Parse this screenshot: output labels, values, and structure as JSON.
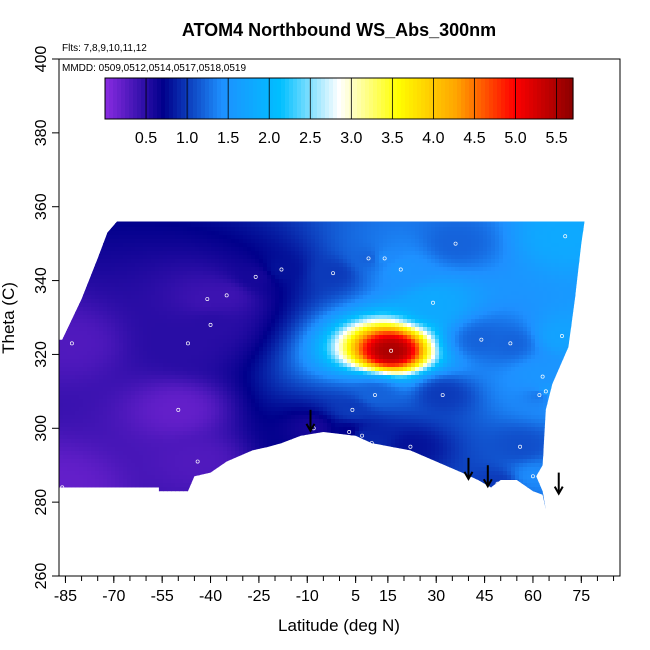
{
  "chart_data": {
    "type": "heatmap",
    "title": "ATOM4 Northbound WS_Abs_300nm",
    "annotations": [
      "Flts: 7,8,9,10,11,12",
      "MMDD: 0509,0512,0514,0517,0518,0519"
    ],
    "xlabel": "Latitude (deg N)",
    "ylabel": "Theta (C)",
    "xlim": [
      -87,
      87
    ],
    "ylim": [
      260,
      400
    ],
    "x_ticks": [
      -85,
      -70,
      -55,
      -40,
      -25,
      -10,
      5,
      15,
      30,
      45,
      60,
      75
    ],
    "x_tick_labels": [
      "-85",
      "-70",
      "-55",
      "-40",
      "-25",
      "-10",
      "5",
      "15",
      "30",
      "45",
      "60",
      "75"
    ],
    "y_ticks": [
      260,
      280,
      300,
      320,
      340,
      360,
      380,
      400
    ],
    "y_tick_labels": [
      "260",
      "280",
      "300",
      "320",
      "340",
      "360",
      "380",
      "400"
    ],
    "colorbar": {
      "range": [
        0,
        5.7
      ],
      "ticks": [
        0.5,
        1.0,
        1.5,
        2.0,
        2.5,
        3.0,
        3.5,
        4.0,
        4.5,
        5.0,
        5.5
      ],
      "tick_labels": [
        "0.5",
        "1.0",
        "1.5",
        "2.0",
        "2.5",
        "3.0",
        "3.5",
        "4.0",
        "4.5",
        "5.0",
        "5.5"
      ],
      "colors": [
        "#8a2be2",
        "#00008b",
        "#1e90ff",
        "#00bfff",
        "#ffffff",
        "#ffff00",
        "#ffa500",
        "#ff0000",
        "#8b0000"
      ]
    },
    "samples": [
      {
        "lat": -86,
        "theta": 284,
        "value": 0.2
      },
      {
        "lat": -83,
        "theta": 323,
        "value": 0.3
      },
      {
        "lat": -50,
        "theta": 305,
        "value": 0.2
      },
      {
        "lat": -47,
        "theta": 323,
        "value": 0.5
      },
      {
        "lat": -44,
        "theta": 291,
        "value": 0.3
      },
      {
        "lat": -41,
        "theta": 335,
        "value": 0.4
      },
      {
        "lat": -40,
        "theta": 328,
        "value": 0.5
      },
      {
        "lat": -35,
        "theta": 336,
        "value": 0.4
      },
      {
        "lat": -26,
        "theta": 341,
        "value": 0.6
      },
      {
        "lat": -18,
        "theta": 343,
        "value": 0.8
      },
      {
        "lat": -8,
        "theta": 300,
        "value": 0.6
      },
      {
        "lat": -2,
        "theta": 342,
        "value": 1.0
      },
      {
        "lat": 3,
        "theta": 299,
        "value": 0.7
      },
      {
        "lat": 4,
        "theta": 305,
        "value": 1.0
      },
      {
        "lat": 7,
        "theta": 298,
        "value": 0.9
      },
      {
        "lat": 9,
        "theta": 346,
        "value": 1.2
      },
      {
        "lat": 10,
        "theta": 296,
        "value": 0.9
      },
      {
        "lat": 11,
        "theta": 309,
        "value": 1.2
      },
      {
        "lat": 14,
        "theta": 346,
        "value": 1.4
      },
      {
        "lat": 16,
        "theta": 321,
        "value": 5.5
      },
      {
        "lat": 19,
        "theta": 343,
        "value": 1.5
      },
      {
        "lat": 22,
        "theta": 295,
        "value": 0.8
      },
      {
        "lat": 29,
        "theta": 334,
        "value": 1.8
      },
      {
        "lat": 32,
        "theta": 309,
        "value": 1.0
      },
      {
        "lat": 36,
        "theta": 350,
        "value": 1.2
      },
      {
        "lat": 44,
        "theta": 324,
        "value": 1.2
      },
      {
        "lat": 49,
        "theta": 285,
        "value": 1.0
      },
      {
        "lat": 53,
        "theta": 323,
        "value": 1.2
      },
      {
        "lat": 56,
        "theta": 295,
        "value": 1.1
      },
      {
        "lat": 60,
        "theta": 287,
        "value": 1.4
      },
      {
        "lat": 62,
        "theta": 309,
        "value": 1.3
      },
      {
        "lat": 63,
        "theta": 314,
        "value": 1.5
      },
      {
        "lat": 64,
        "theta": 310,
        "value": 1.6
      },
      {
        "lat": 69,
        "theta": 325,
        "value": 1.7
      },
      {
        "lat": 70,
        "theta": 352,
        "value": 1.8
      }
    ],
    "flight_markers": [
      {
        "lat": -9,
        "theta": 305
      },
      {
        "lat": 40,
        "theta": 292
      },
      {
        "lat": 46,
        "theta": 290
      },
      {
        "lat": 68,
        "theta": 288
      }
    ],
    "data_boundary": {
      "top": [
        [
          -86,
          324
        ],
        [
          -80,
          335
        ],
        [
          -75,
          346
        ],
        [
          -72,
          353
        ],
        [
          -69,
          356
        ],
        [
          76,
          356
        ]
      ],
      "right": [
        [
          76,
          356
        ],
        [
          75,
          350
        ],
        [
          73,
          335
        ],
        [
          71,
          322
        ],
        [
          66,
          312
        ],
        [
          64,
          305
        ],
        [
          63,
          290
        ],
        [
          61,
          287
        ],
        [
          63,
          283
        ],
        [
          64,
          278
        ]
      ],
      "bottom": [
        [
          64,
          278
        ],
        [
          63,
          282
        ],
        [
          60,
          283
        ],
        [
          55,
          286
        ],
        [
          50,
          286
        ],
        [
          47,
          284
        ],
        [
          43,
          286
        ],
        [
          38,
          288
        ],
        [
          30,
          291
        ],
        [
          22,
          294
        ],
        [
          10,
          296
        ],
        [
          5,
          298
        ],
        [
          -5,
          299
        ],
        [
          -12,
          298
        ],
        [
          -18,
          296
        ],
        [
          -22,
          295
        ],
        [
          -27,
          294
        ],
        [
          -35,
          291
        ],
        [
          -40,
          288
        ],
        [
          -45,
          287
        ],
        [
          -47,
          283
        ],
        [
          -56,
          283
        ],
        [
          -56,
          284
        ],
        [
          -87,
          284
        ]
      ],
      "left": [
        [
          -87,
          284
        ],
        [
          -87,
          324
        ]
      ]
    }
  }
}
